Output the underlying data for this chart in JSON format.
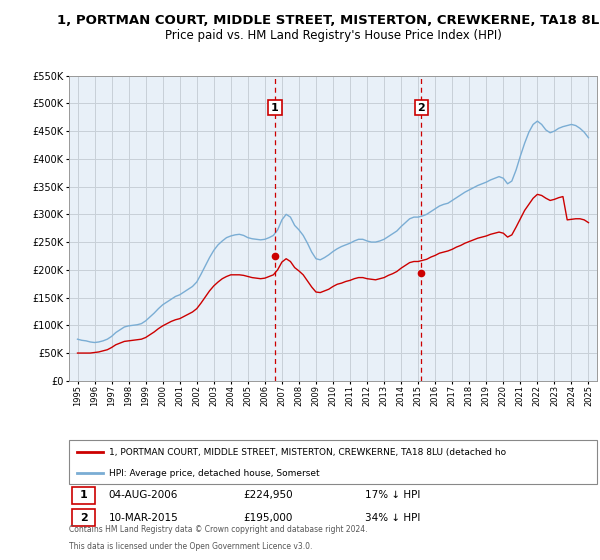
{
  "title": "1, PORTMAN COURT, MIDDLE STREET, MISTERTON, CREWKERNE, TA18 8LU",
  "subtitle": "Price paid vs. HM Land Registry's House Price Index (HPI)",
  "title_fontsize": 9.5,
  "subtitle_fontsize": 8.5,
  "background_color": "#ffffff",
  "plot_bg_color": "#e8f0f8",
  "grid_color": "#c8d0d8",
  "ylim": [
    0,
    550000
  ],
  "yticks": [
    0,
    50000,
    100000,
    150000,
    200000,
    250000,
    300000,
    350000,
    400000,
    450000,
    500000,
    550000
  ],
  "ytick_labels": [
    "£0",
    "£50K",
    "£100K",
    "£150K",
    "£200K",
    "£250K",
    "£300K",
    "£350K",
    "£400K",
    "£450K",
    "£500K",
    "£550K"
  ],
  "xlim_start": 1994.5,
  "xlim_end": 2025.5,
  "xticks": [
    1995,
    1996,
    1997,
    1998,
    1999,
    2000,
    2001,
    2002,
    2003,
    2004,
    2005,
    2006,
    2007,
    2008,
    2009,
    2010,
    2011,
    2012,
    2013,
    2014,
    2015,
    2016,
    2017,
    2018,
    2019,
    2020,
    2021,
    2022,
    2023,
    2024,
    2025
  ],
  "sale1_x": 2006.587,
  "sale1_y": 224950,
  "sale1_label": "1",
  "sale1_date": "04-AUG-2006",
  "sale1_price": "£224,950",
  "sale1_hpi": "17% ↓ HPI",
  "sale2_x": 2015.19,
  "sale2_y": 195000,
  "sale2_label": "2",
  "sale2_date": "10-MAR-2015",
  "sale2_price": "£195,000",
  "sale2_hpi": "34% ↓ HPI",
  "red_line_color": "#cc0000",
  "blue_line_color": "#7aadd4",
  "sale_marker_color": "#cc0000",
  "vline_color": "#cc0000",
  "legend_label_red": "1, PORTMAN COURT, MIDDLE STREET, MISTERTON, CREWKERNE, TA18 8LU (detached ho",
  "legend_label_blue": "HPI: Average price, detached house, Somerset",
  "footnote1": "Contains HM Land Registry data © Crown copyright and database right 2024.",
  "footnote2": "This data is licensed under the Open Government Licence v3.0.",
  "hpi_data_x": [
    1995.0,
    1995.25,
    1995.5,
    1995.75,
    1996.0,
    1996.25,
    1996.5,
    1996.75,
    1997.0,
    1997.25,
    1997.5,
    1997.75,
    1998.0,
    1998.25,
    1998.5,
    1998.75,
    1999.0,
    1999.25,
    1999.5,
    1999.75,
    2000.0,
    2000.25,
    2000.5,
    2000.75,
    2001.0,
    2001.25,
    2001.5,
    2001.75,
    2002.0,
    2002.25,
    2002.5,
    2002.75,
    2003.0,
    2003.25,
    2003.5,
    2003.75,
    2004.0,
    2004.25,
    2004.5,
    2004.75,
    2005.0,
    2005.25,
    2005.5,
    2005.75,
    2006.0,
    2006.25,
    2006.5,
    2006.75,
    2007.0,
    2007.25,
    2007.5,
    2007.75,
    2008.0,
    2008.25,
    2008.5,
    2008.75,
    2009.0,
    2009.25,
    2009.5,
    2009.75,
    2010.0,
    2010.25,
    2010.5,
    2010.75,
    2011.0,
    2011.25,
    2011.5,
    2011.75,
    2012.0,
    2012.25,
    2012.5,
    2012.75,
    2013.0,
    2013.25,
    2013.5,
    2013.75,
    2014.0,
    2014.25,
    2014.5,
    2014.75,
    2015.0,
    2015.25,
    2015.5,
    2015.75,
    2016.0,
    2016.25,
    2016.5,
    2016.75,
    2017.0,
    2017.25,
    2017.5,
    2017.75,
    2018.0,
    2018.25,
    2018.5,
    2018.75,
    2019.0,
    2019.25,
    2019.5,
    2019.75,
    2020.0,
    2020.25,
    2020.5,
    2020.75,
    2021.0,
    2021.25,
    2021.5,
    2021.75,
    2022.0,
    2022.25,
    2022.5,
    2022.75,
    2023.0,
    2023.25,
    2023.5,
    2023.75,
    2024.0,
    2024.25,
    2024.5,
    2024.75,
    2025.0
  ],
  "hpi_data_y": [
    75000,
    73000,
    72000,
    70000,
    69000,
    70000,
    72000,
    75000,
    80000,
    87000,
    92000,
    97000,
    99000,
    100000,
    101000,
    103000,
    108000,
    115000,
    122000,
    130000,
    137000,
    142000,
    147000,
    152000,
    155000,
    160000,
    165000,
    170000,
    178000,
    192000,
    207000,
    222000,
    235000,
    245000,
    252000,
    258000,
    261000,
    263000,
    264000,
    262000,
    258000,
    256000,
    255000,
    254000,
    255000,
    258000,
    262000,
    272000,
    290000,
    300000,
    295000,
    280000,
    272000,
    262000,
    248000,
    232000,
    220000,
    218000,
    222000,
    227000,
    233000,
    238000,
    242000,
    245000,
    248000,
    252000,
    255000,
    255000,
    252000,
    250000,
    250000,
    252000,
    255000,
    260000,
    265000,
    270000,
    278000,
    285000,
    292000,
    295000,
    295000,
    297000,
    300000,
    305000,
    310000,
    315000,
    318000,
    320000,
    325000,
    330000,
    335000,
    340000,
    344000,
    348000,
    352000,
    355000,
    358000,
    362000,
    365000,
    368000,
    365000,
    355000,
    360000,
    380000,
    405000,
    428000,
    448000,
    462000,
    468000,
    462000,
    452000,
    447000,
    450000,
    455000,
    458000,
    460000,
    462000,
    460000,
    455000,
    448000,
    438000
  ],
  "red_data_x": [
    1995.0,
    1995.25,
    1995.5,
    1995.75,
    1996.0,
    1996.25,
    1996.5,
    1996.75,
    1997.0,
    1997.25,
    1997.5,
    1997.75,
    1998.0,
    1998.25,
    1998.5,
    1998.75,
    1999.0,
    1999.25,
    1999.5,
    1999.75,
    2000.0,
    2000.25,
    2000.5,
    2000.75,
    2001.0,
    2001.25,
    2001.5,
    2001.75,
    2002.0,
    2002.25,
    2002.5,
    2002.75,
    2003.0,
    2003.25,
    2003.5,
    2003.75,
    2004.0,
    2004.25,
    2004.5,
    2004.75,
    2005.0,
    2005.25,
    2005.5,
    2005.75,
    2006.0,
    2006.25,
    2006.5,
    2006.75,
    2007.0,
    2007.25,
    2007.5,
    2007.75,
    2008.0,
    2008.25,
    2008.5,
    2008.75,
    2009.0,
    2009.25,
    2009.5,
    2009.75,
    2010.0,
    2010.25,
    2010.5,
    2010.75,
    2011.0,
    2011.25,
    2011.5,
    2011.75,
    2012.0,
    2012.25,
    2012.5,
    2012.75,
    2013.0,
    2013.25,
    2013.5,
    2013.75,
    2014.0,
    2014.25,
    2014.5,
    2014.75,
    2015.0,
    2015.25,
    2015.5,
    2015.75,
    2016.0,
    2016.25,
    2016.5,
    2016.75,
    2017.0,
    2017.25,
    2017.5,
    2017.75,
    2018.0,
    2018.25,
    2018.5,
    2018.75,
    2019.0,
    2019.25,
    2019.5,
    2019.75,
    2020.0,
    2020.25,
    2020.5,
    2020.75,
    2021.0,
    2021.25,
    2021.5,
    2021.75,
    2022.0,
    2022.25,
    2022.5,
    2022.75,
    2023.0,
    2023.25,
    2023.5,
    2023.75,
    2024.0,
    2024.25,
    2024.5,
    2024.75,
    2025.0
  ],
  "red_data_y": [
    50000,
    50000,
    50000,
    50000,
    51000,
    52000,
    54000,
    56000,
    60000,
    65000,
    68000,
    71000,
    72000,
    73000,
    74000,
    75000,
    78000,
    83000,
    88000,
    94000,
    99000,
    103000,
    107000,
    110000,
    112000,
    116000,
    120000,
    124000,
    130000,
    140000,
    151000,
    162000,
    171000,
    178000,
    184000,
    188000,
    191000,
    191000,
    191000,
    190000,
    188000,
    186000,
    185000,
    184000,
    185000,
    188000,
    191000,
    200000,
    214000,
    220000,
    215000,
    204000,
    198000,
    191000,
    180000,
    169000,
    160000,
    159000,
    162000,
    165000,
    170000,
    174000,
    176000,
    179000,
    181000,
    184000,
    186000,
    186000,
    184000,
    183000,
    182000,
    184000,
    186000,
    190000,
    193000,
    197000,
    203000,
    208000,
    213000,
    215000,
    215000,
    217000,
    219000,
    223000,
    226000,
    230000,
    232000,
    234000,
    237000,
    241000,
    244000,
    248000,
    251000,
    254000,
    257000,
    259000,
    261000,
    264000,
    266000,
    268000,
    266000,
    259000,
    263000,
    277000,
    292000,
    307000,
    318000,
    329000,
    336000,
    334000,
    329000,
    325000,
    327000,
    330000,
    332000,
    290000,
    291000,
    292000,
    292000,
    290000,
    285000
  ]
}
